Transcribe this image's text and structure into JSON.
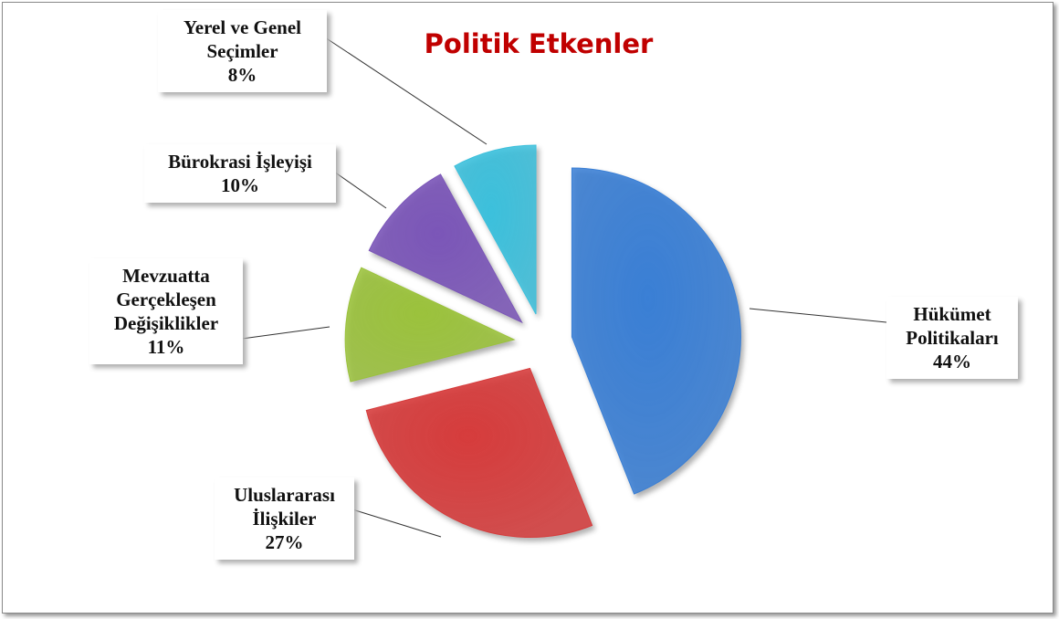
{
  "chart_data": {
    "type": "pie",
    "title": "Politik Etkenler",
    "categories": [
      "Hükümet Politikaları",
      "Uluslararası İlişkiler",
      "Mevzuatta Gerçekleşen Değişiklikler",
      "Bürokrasi İşleyişi",
      "Yerel ve Genel Seçimler"
    ],
    "values": [
      44,
      27,
      11,
      10,
      8
    ],
    "value_labels": [
      "44%",
      "27%",
      "11%",
      "10%",
      "8%"
    ],
    "colors": [
      "#3a7fd5",
      "#d63c3c",
      "#9bc23c",
      "#7b56b8",
      "#3cc0dc"
    ]
  }
}
